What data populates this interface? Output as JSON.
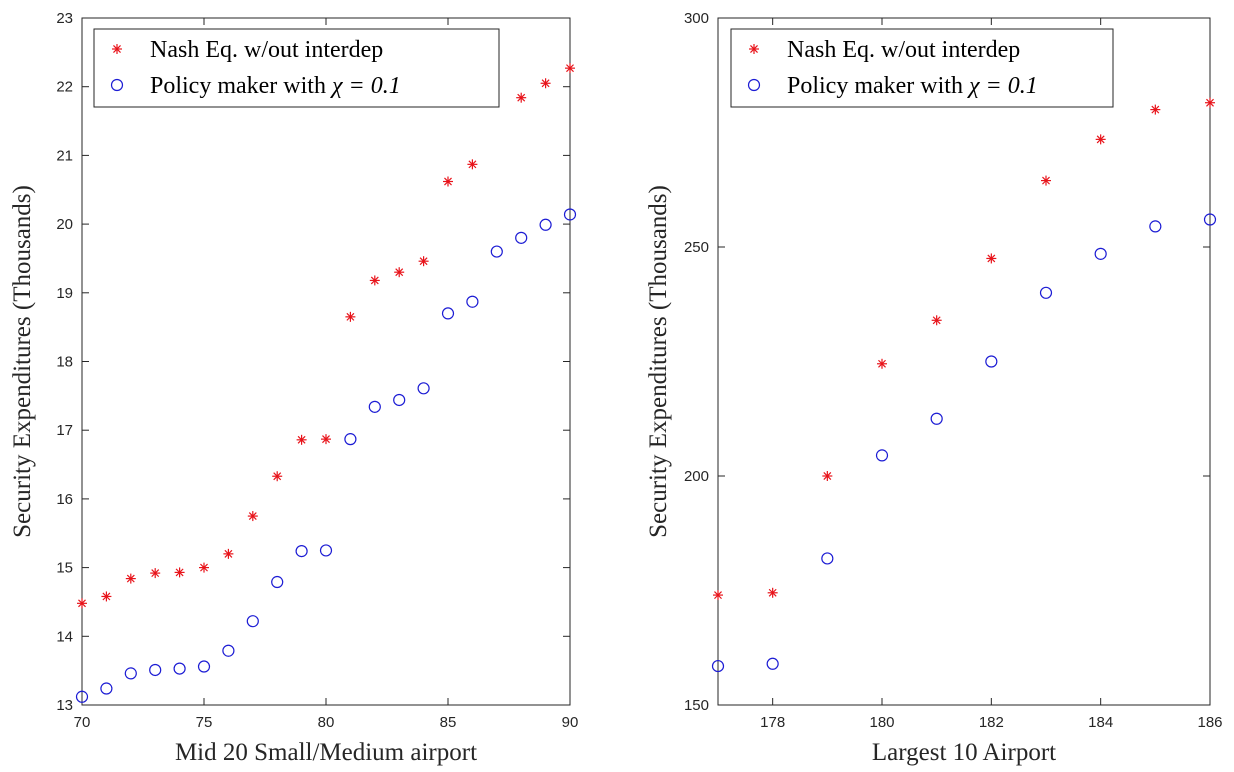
{
  "chart_data": [
    {
      "type": "scatter",
      "title": "",
      "xlabel": "Mid 20 Small/Medium airport",
      "ylabel": "Security Expenditures (Thousands)",
      "xlim": [
        70,
        90
      ],
      "ylim": [
        13,
        23
      ],
      "xticks": [
        70,
        75,
        80,
        85,
        90
      ],
      "yticks": [
        13,
        14,
        15,
        16,
        17,
        18,
        19,
        20,
        21,
        22,
        23
      ],
      "grid": false,
      "legend_position": "top-left",
      "series": [
        {
          "name": "Nash Eq. w/out interdep",
          "marker": "asterisk",
          "color": "#e8141b",
          "points": [
            [
              70,
              14.48
            ],
            [
              71,
              14.58
            ],
            [
              72,
              14.84
            ],
            [
              73,
              14.92
            ],
            [
              74,
              14.93
            ],
            [
              75,
              15.0
            ],
            [
              76,
              15.2
            ],
            [
              77,
              15.75
            ],
            [
              78,
              16.33
            ],
            [
              79,
              16.86
            ],
            [
              80,
              16.87
            ],
            [
              81,
              18.65
            ],
            [
              82,
              19.18
            ],
            [
              83,
              19.3
            ],
            [
              84,
              19.46
            ],
            [
              85,
              20.62
            ],
            [
              86,
              20.87
            ],
            [
              88,
              21.84
            ],
            [
              89,
              22.05
            ],
            [
              90,
              22.27
            ]
          ]
        },
        {
          "name_prefix": "Policy maker with ",
          "name_math": "χ = 0.1",
          "marker": "circle",
          "color": "#1c1cd4",
          "points": [
            [
              70,
              13.12
            ],
            [
              71,
              13.24
            ],
            [
              72,
              13.46
            ],
            [
              73,
              13.51
            ],
            [
              74,
              13.53
            ],
            [
              75,
              13.56
            ],
            [
              76,
              13.79
            ],
            [
              77,
              14.22
            ],
            [
              78,
              14.79
            ],
            [
              79,
              15.24
            ],
            [
              80,
              15.25
            ],
            [
              81,
              16.87
            ],
            [
              82,
              17.34
            ],
            [
              83,
              17.44
            ],
            [
              84,
              17.61
            ],
            [
              85,
              18.7
            ],
            [
              86,
              18.87
            ],
            [
              87,
              19.6
            ],
            [
              88,
              19.8
            ],
            [
              89,
              19.99
            ],
            [
              90,
              20.14
            ]
          ]
        }
      ]
    },
    {
      "type": "scatter",
      "title": "",
      "xlabel": "Largest 10 Airport",
      "ylabel": "Security Expenditures (Thousands)",
      "xlim": [
        177,
        186
      ],
      "ylim": [
        150,
        300
      ],
      "xticks": [
        178,
        180,
        182,
        184,
        186
      ],
      "yticks": [
        150,
        200,
        250,
        300
      ],
      "grid": false,
      "legend_position": "top-left",
      "series": [
        {
          "name": "Nash Eq. w/out interdep",
          "marker": "asterisk",
          "color": "#e8141b",
          "points": [
            [
              177,
              174
            ],
            [
              178,
              174.5
            ],
            [
              179,
              200
            ],
            [
              180,
              224.5
            ],
            [
              181,
              234
            ],
            [
              182,
              247.5
            ],
            [
              183,
              264.5
            ],
            [
              184,
              273.5
            ],
            [
              185,
              280
            ],
            [
              186,
              281.5
            ]
          ]
        },
        {
          "name_prefix": "Policy maker with ",
          "name_math": "χ = 0.1",
          "marker": "circle",
          "color": "#1c1cd4",
          "points": [
            [
              177,
              158.5
            ],
            [
              178,
              159
            ],
            [
              179,
              182
            ],
            [
              180,
              204.5
            ],
            [
              181,
              212.5
            ],
            [
              182,
              225
            ],
            [
              183,
              240
            ],
            [
              184,
              248.5
            ],
            [
              185,
              254.5
            ],
            [
              186,
              256
            ]
          ]
        }
      ]
    }
  ]
}
